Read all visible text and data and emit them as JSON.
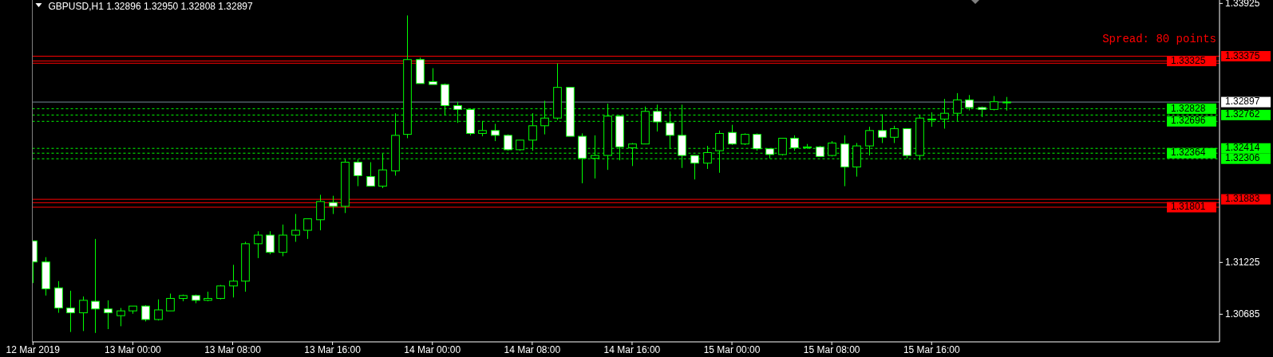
{
  "chart_data": {
    "type": "candlestick",
    "title": "GBPUSD,H1  1.32896 1.32950 1.32808 1.32897",
    "annotations": [
      "Spread: 80 points"
    ],
    "color": "#00ff00",
    "x": [
      "2019-03-12T16:00",
      "2019-03-12T17:00",
      "2019-03-12T18:00",
      "2019-03-12T19:00",
      "2019-03-12T20:00",
      "2019-03-12T21:00",
      "2019-03-12T22:00",
      "2019-03-12T23:00",
      "2019-03-13T00:00",
      "2019-03-13T01:00",
      "2019-03-13T02:00",
      "2019-03-13T03:00",
      "2019-03-13T04:00",
      "2019-03-13T05:00",
      "2019-03-13T06:00",
      "2019-03-13T07:00",
      "2019-03-13T08:00",
      "2019-03-13T09:00",
      "2019-03-13T10:00",
      "2019-03-13T11:00",
      "2019-03-13T12:00",
      "2019-03-13T13:00",
      "2019-03-13T14:00",
      "2019-03-13T15:00",
      "2019-03-13T16:00",
      "2019-03-13T17:00",
      "2019-03-13T18:00",
      "2019-03-13T19:00",
      "2019-03-13T20:00",
      "2019-03-13T21:00",
      "2019-03-13T22:00",
      "2019-03-13T23:00",
      "2019-03-14T00:00",
      "2019-03-14T01:00",
      "2019-03-14T02:00",
      "2019-03-14T03:00",
      "2019-03-14T04:00",
      "2019-03-14T05:00",
      "2019-03-14T06:00",
      "2019-03-14T07:00",
      "2019-03-14T08:00",
      "2019-03-14T09:00",
      "2019-03-14T10:00",
      "2019-03-14T11:00",
      "2019-03-14T12:00",
      "2019-03-14T13:00",
      "2019-03-14T14:00",
      "2019-03-14T15:00",
      "2019-03-14T16:00",
      "2019-03-14T17:00",
      "2019-03-14T18:00",
      "2019-03-14T19:00",
      "2019-03-14T20:00",
      "2019-03-14T21:00",
      "2019-03-14T22:00",
      "2019-03-14T23:00",
      "2019-03-15T00:00",
      "2019-03-15T01:00",
      "2019-03-15T02:00",
      "2019-03-15T03:00",
      "2019-03-15T04:00",
      "2019-03-15T05:00",
      "2019-03-15T06:00",
      "2019-03-15T07:00",
      "2019-03-15T08:00",
      "2019-03-15T09:00",
      "2019-03-15T10:00",
      "2019-03-15T11:00",
      "2019-03-15T12:00",
      "2019-03-15T13:00",
      "2019-03-15T14:00",
      "2019-03-15T15:00",
      "2019-03-15T16:00",
      "2019-03-15T17:00",
      "2019-03-15T18:00",
      "2019-03-15T19:00",
      "2019-03-15T20:00",
      "2019-03-15T21:00",
      "2019-03-15T22:00"
    ],
    "ohlc": [
      [
        1.3145,
        1.3145,
        1.3101,
        1.3123
      ],
      [
        1.3123,
        1.3128,
        1.3088,
        1.3095
      ],
      [
        1.3096,
        1.3103,
        1.307,
        1.3075
      ],
      [
        1.3075,
        1.3093,
        1.305,
        1.307
      ],
      [
        1.307,
        1.3087,
        1.3051,
        1.3083
      ],
      [
        1.3082,
        1.3147,
        1.3049,
        1.3074
      ],
      [
        1.3074,
        1.3083,
        1.3053,
        1.307
      ],
      [
        1.3067,
        1.3075,
        1.3056,
        1.3072
      ],
      [
        1.3072,
        1.3077,
        1.3069,
        1.3077
      ],
      [
        1.3077,
        1.3078,
        1.3061,
        1.3063
      ],
      [
        1.3063,
        1.3084,
        1.3062,
        1.3073
      ],
      [
        1.3072,
        1.309,
        1.3072,
        1.3085
      ],
      [
        1.3085,
        1.3089,
        1.3082,
        1.3088
      ],
      [
        1.3088,
        1.3089,
        1.308,
        1.3083
      ],
      [
        1.3083,
        1.3092,
        1.3082,
        1.3085
      ],
      [
        1.3085,
        1.3099,
        1.3084,
        1.3098
      ],
      [
        1.3098,
        1.312,
        1.3086,
        1.3103
      ],
      [
        1.3103,
        1.3144,
        1.3092,
        1.3142
      ],
      [
        1.3142,
        1.3155,
        1.3127,
        1.3151
      ],
      [
        1.3151,
        1.3155,
        1.3131,
        1.3133
      ],
      [
        1.3133,
        1.3162,
        1.3129,
        1.3151
      ],
      [
        1.3151,
        1.3173,
        1.3144,
        1.3156
      ],
      [
        1.3156,
        1.3168,
        1.3147,
        1.3168
      ],
      [
        1.3167,
        1.3193,
        1.3156,
        1.3186
      ],
      [
        1.3185,
        1.3192,
        1.3173,
        1.3181
      ],
      [
        1.3181,
        1.323,
        1.3174,
        1.3227
      ],
      [
        1.3227,
        1.323,
        1.3202,
        1.3213
      ],
      [
        1.3212,
        1.3227,
        1.3202,
        1.3202
      ],
      [
        1.3202,
        1.3236,
        1.32,
        1.3219
      ],
      [
        1.3218,
        1.3278,
        1.3213,
        1.3255
      ],
      [
        1.3256,
        1.338,
        1.3252,
        1.3334
      ],
      [
        1.3334,
        1.3336,
        1.3309,
        1.3309
      ],
      [
        1.3311,
        1.3325,
        1.3308,
        1.3308
      ],
      [
        1.3308,
        1.3309,
        1.3276,
        1.3286
      ],
      [
        1.3286,
        1.329,
        1.3268,
        1.3282
      ],
      [
        1.3282,
        1.3283,
        1.3255,
        1.3257
      ],
      [
        1.3257,
        1.327,
        1.3254,
        1.326
      ],
      [
        1.326,
        1.3267,
        1.3249,
        1.3255
      ],
      [
        1.3255,
        1.3256,
        1.3239,
        1.324
      ],
      [
        1.324,
        1.325,
        1.3239,
        1.325
      ],
      [
        1.325,
        1.3278,
        1.3239,
        1.3265
      ],
      [
        1.3265,
        1.3291,
        1.3256,
        1.3273
      ],
      [
        1.3273,
        1.333,
        1.3271,
        1.3305
      ],
      [
        1.3305,
        1.3305,
        1.3254,
        1.3254
      ],
      [
        1.3254,
        1.3257,
        1.3205,
        1.3231
      ],
      [
        1.3231,
        1.3255,
        1.321,
        1.3234
      ],
      [
        1.3234,
        1.3288,
        1.3219,
        1.3275
      ],
      [
        1.3275,
        1.3276,
        1.3229,
        1.3243
      ],
      [
        1.3242,
        1.3247,
        1.3223,
        1.3246
      ],
      [
        1.3246,
        1.3285,
        1.3246,
        1.328
      ],
      [
        1.328,
        1.3287,
        1.3259,
        1.3269
      ],
      [
        1.3268,
        1.328,
        1.3241,
        1.3255
      ],
      [
        1.3255,
        1.3287,
        1.3221,
        1.3234
      ],
      [
        1.3234,
        1.3234,
        1.3209,
        1.3226
      ],
      [
        1.3226,
        1.3244,
        1.322,
        1.3237
      ],
      [
        1.3239,
        1.326,
        1.3216,
        1.3257
      ],
      [
        1.3258,
        1.3266,
        1.3245,
        1.3246
      ],
      [
        1.3246,
        1.3257,
        1.3245,
        1.3256
      ],
      [
        1.3256,
        1.3257,
        1.3239,
        1.3241
      ],
      [
        1.3241,
        1.3241,
        1.3231,
        1.3235
      ],
      [
        1.3235,
        1.3252,
        1.3234,
        1.3252
      ],
      [
        1.3252,
        1.3255,
        1.3239,
        1.3242
      ],
      [
        1.3242,
        1.3246,
        1.3241,
        1.3243
      ],
      [
        1.3243,
        1.3244,
        1.3233,
        1.3233
      ],
      [
        1.3234,
        1.3249,
        1.3233,
        1.3247
      ],
      [
        1.3246,
        1.3255,
        1.3202,
        1.3222
      ],
      [
        1.3222,
        1.3247,
        1.3212,
        1.3244
      ],
      [
        1.3244,
        1.3264,
        1.3234,
        1.326
      ],
      [
        1.326,
        1.3277,
        1.3247,
        1.3253
      ],
      [
        1.3253,
        1.3265,
        1.3247,
        1.3262
      ],
      [
        1.3262,
        1.3262,
        1.3231,
        1.3234
      ],
      [
        1.3234,
        1.3276,
        1.3229,
        1.3273
      ],
      [
        1.3272,
        1.3279,
        1.3264,
        1.3272
      ],
      [
        1.3272,
        1.3293,
        1.3262,
        1.3278
      ],
      [
        1.3278,
        1.3299,
        1.327,
        1.3292
      ],
      [
        1.3292,
        1.3297,
        1.3281,
        1.3284
      ],
      [
        1.3284,
        1.3285,
        1.3274,
        1.3282
      ],
      [
        1.3282,
        1.3296,
        1.3281,
        1.329
      ],
      [
        1.32896,
        1.3295,
        1.32808,
        1.32897
      ]
    ],
    "xlim": [
      "2019-03-12T15:57",
      "2019-03-16T15:04"
    ],
    "xticks": [
      {
        "value": "2019-03-12T16:00",
        "label": "12 Mar 2019"
      },
      {
        "value": "2019-03-13T00:00",
        "label": "13 Mar 00:00"
      },
      {
        "value": "2019-03-13T08:00",
        "label": "13 Mar 08:00"
      },
      {
        "value": "2019-03-13T16:00",
        "label": "13 Mar 16:00"
      },
      {
        "value": "2019-03-14T00:00",
        "label": "14 Mar 00:00"
      },
      {
        "value": "2019-03-14T08:00",
        "label": "14 Mar 08:00"
      },
      {
        "value": "2019-03-14T16:00",
        "label": "14 Mar 16:00"
      },
      {
        "value": "2019-03-15T00:00",
        "label": "15 Mar 00:00"
      },
      {
        "value": "2019-03-15T08:00",
        "label": "15 Mar 08:00"
      },
      {
        "value": "2019-03-15T16:00",
        "label": "15 Mar 16:00"
      }
    ],
    "ylim": [
      1.30397,
      1.33961
    ],
    "yticks": [
      {
        "value": 1.33925,
        "label": "1.33925"
      },
      {
        "value": 1.31225,
        "label": "1.31225"
      },
      {
        "value": 1.30685,
        "label": "1.30685"
      }
    ],
    "ref_lines": [
      {
        "axis": "y",
        "value": 1.33375,
        "label": "1.33375",
        "color": "#ff0000",
        "line_style": "solid"
      },
      {
        "axis": "y",
        "value": 1.33325,
        "label": "1.33325",
        "color": "#ff0000",
        "line_style": "solid"
      },
      {
        "axis": "y",
        "value": 1.33302,
        "label": null,
        "color": "#ff0000",
        "line_style": "solid"
      },
      {
        "axis": "y",
        "value": 1.32897,
        "label": "1.32897",
        "color": "#778899",
        "line_style": "solid"
      },
      {
        "axis": "y",
        "value": 1.32828,
        "label": "1.32828",
        "color": "#00ff00",
        "line_style": "dashed"
      },
      {
        "axis": "y",
        "value": 1.32762,
        "label": "1.32762",
        "color": "#00ff00",
        "line_style": "dashed"
      },
      {
        "axis": "y",
        "value": 1.32696,
        "label": "1.32696",
        "color": "#00ff00",
        "line_style": "dashed"
      },
      {
        "axis": "y",
        "value": 1.32414,
        "label": "1.32414",
        "color": "#00ff00",
        "line_style": "dashed"
      },
      {
        "axis": "y",
        "value": 1.32364,
        "label": "1.32364",
        "color": "#00ff00",
        "line_style": "dashed"
      },
      {
        "axis": "y",
        "value": 1.32306,
        "label": "1.32306",
        "color": "#00ff00",
        "line_style": "dashed"
      },
      {
        "axis": "y",
        "value": 1.31883,
        "label": "1.31883",
        "color": "#ff0000",
        "line_style": "solid"
      },
      {
        "axis": "y",
        "value": 1.31848,
        "label": null,
        "color": "#ff0000",
        "line_style": "solid"
      },
      {
        "axis": "y",
        "value": 1.31801,
        "label": "1.31801",
        "color": "#ff0000",
        "line_style": "solid"
      }
    ]
  }
}
